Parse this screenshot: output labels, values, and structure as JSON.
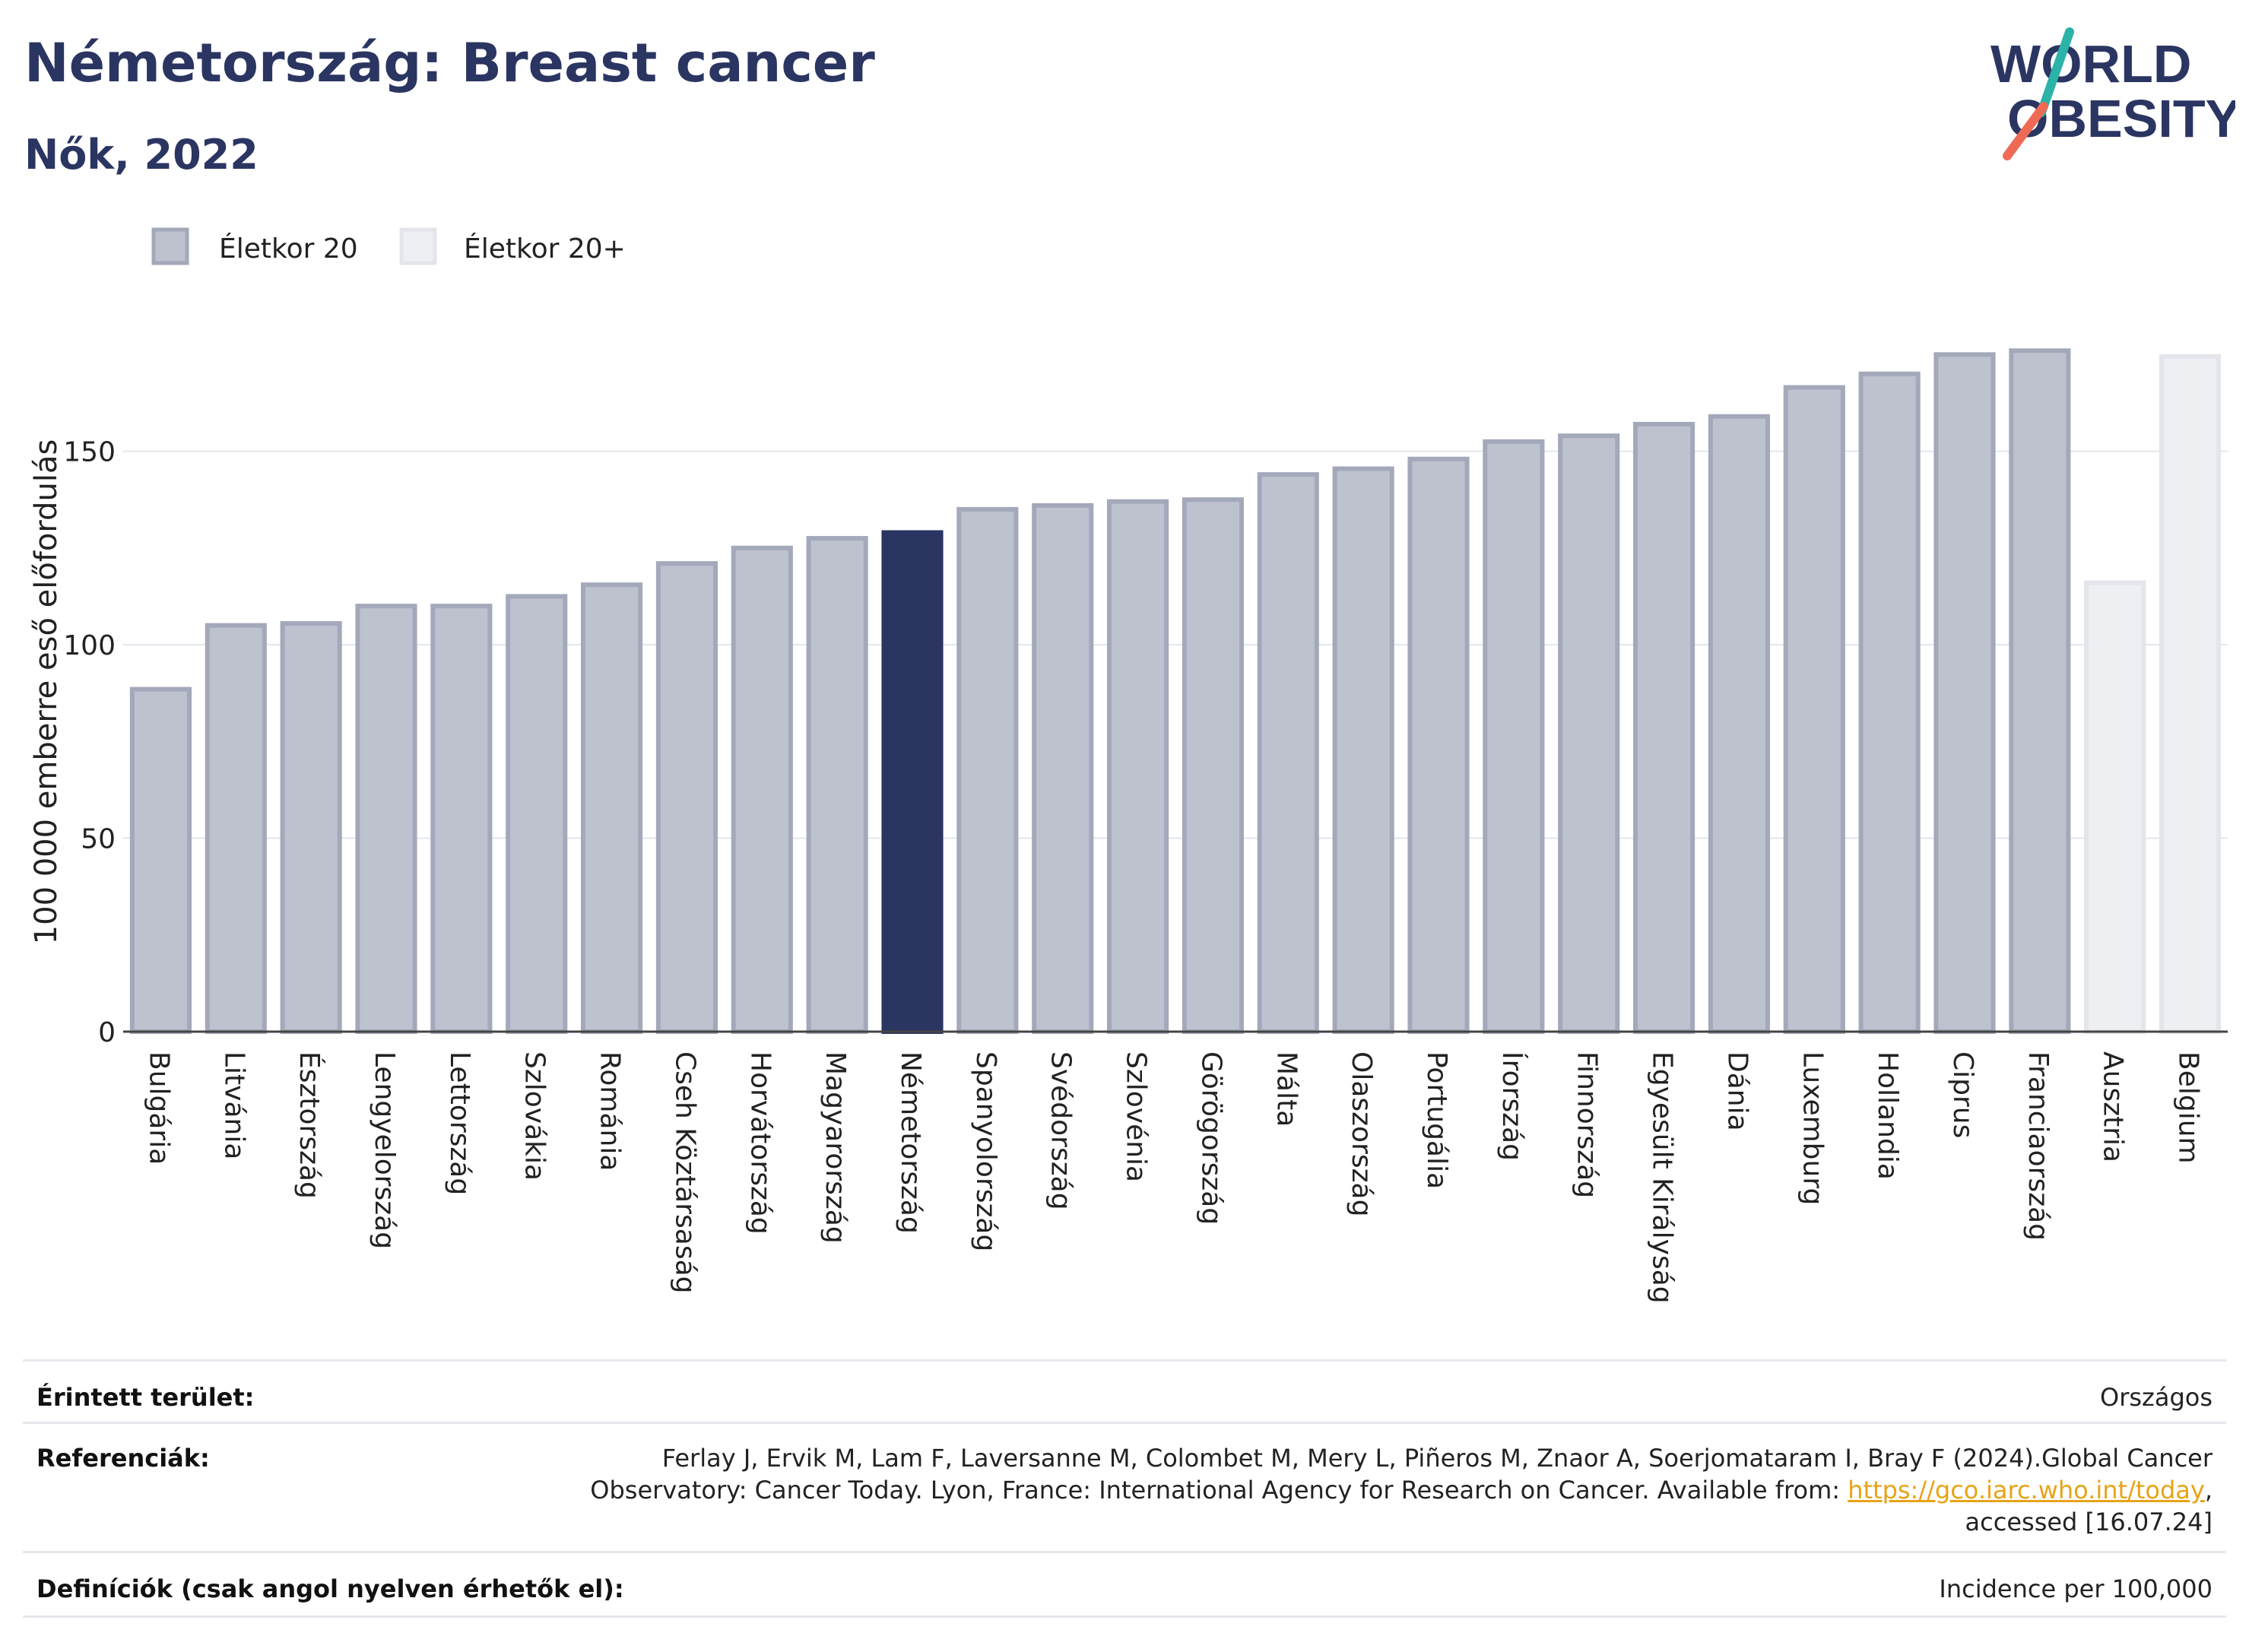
{
  "header": {
    "title": "Németország: Breast cancer",
    "subtitle": "Nők, 2022"
  },
  "logo": {
    "line1": "WORLD",
    "line2": "OBESITY"
  },
  "chart_data": {
    "type": "bar",
    "title": "Németország: Breast cancer",
    "subtitle": "Nők, 2022",
    "ylabel": "100 000 emberre eső előfordulás",
    "xlabel": "",
    "ylim": [
      0,
      190
    ],
    "yticks": [
      0,
      50,
      100,
      150
    ],
    "grid": true,
    "legend_position": "top-left",
    "legend": [
      {
        "name": "Életkor 20",
        "color": "#bec2cf",
        "stroke": "#a3a8ba"
      },
      {
        "name": "Életkor 20+",
        "color": "#eeeff3",
        "stroke": "#e3e5eb"
      }
    ],
    "highlight_color": "#2b3562",
    "categories": [
      "Bulgária",
      "Litvánia",
      "Észtország",
      "Lengyelország",
      "Lettország",
      "Szlovákia",
      "Románia",
      "Cseh Köztársaság",
      "Horvátország",
      "Magyarország",
      "Németország",
      "Spanyolország",
      "Svédország",
      "Szlovénia",
      "Görögország",
      "Málta",
      "Olaszország",
      "Portugália",
      "Írország",
      "Finnország",
      "Egyesült Királyság",
      "Dánia",
      "Luxemburg",
      "Hollandia",
      "Ciprus",
      "Franciaország",
      "Ausztria",
      "Belgium"
    ],
    "values": [
      88.5,
      105,
      105.5,
      110,
      110,
      112.5,
      115.5,
      121,
      125,
      127.5,
      129,
      135,
      136,
      137,
      137.5,
      144,
      145.5,
      148,
      152.5,
      154,
      157,
      159,
      166.5,
      170,
      175,
      176,
      116,
      174.5
    ],
    "series_membership": [
      "Életkor 20",
      "Életkor 20",
      "Életkor 20",
      "Életkor 20",
      "Életkor 20",
      "Életkor 20",
      "Életkor 20",
      "Életkor 20",
      "Életkor 20",
      "Életkor 20",
      "Életkor 20",
      "Életkor 20",
      "Életkor 20",
      "Életkor 20",
      "Életkor 20",
      "Életkor 20",
      "Életkor 20",
      "Életkor 20",
      "Életkor 20",
      "Életkor 20",
      "Életkor 20",
      "Életkor 20",
      "Életkor 20",
      "Életkor 20",
      "Életkor 20",
      "Életkor 20",
      "Életkor 20+",
      "Életkor 20+"
    ],
    "highlight": "Németország"
  },
  "footer": {
    "area_label": "Érintett terület:",
    "area_value": "Országos",
    "ref_label": "Referenciák:",
    "ref_line1": "Ferlay J, Ervik M, Lam F, Laversanne M, Colombet M, Mery L, Piñeros M, Znaor A, Soerjomataram I, Bray F (2024).Global Cancer",
    "ref_line2": "Observatory: Cancer Today. Lyon, France: International Agency for Research on Cancer. Available from: ",
    "ref_link": "https://gco.iarc.who.int/today",
    "ref_line2_end": ",",
    "ref_line3": "accessed [16.07.24]",
    "def_label": "Definíciók (csak angol nyelven érhetők el):",
    "def_value": "Incidence per 100,000"
  }
}
